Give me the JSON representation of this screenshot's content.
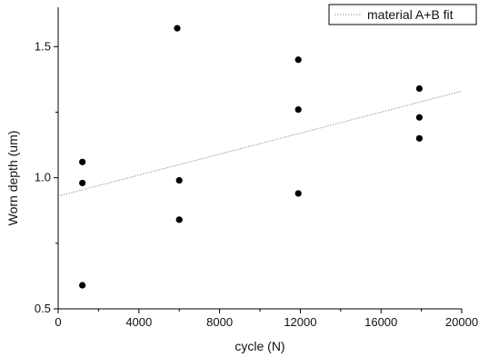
{
  "chart_data": {
    "type": "scatter",
    "xlabel": "cycle (N)",
    "ylabel": "Worn depth (um)",
    "xlim": [
      0,
      20000
    ],
    "ylim": [
      0.5,
      1.65
    ],
    "xticks": [
      0,
      4000,
      8000,
      12000,
      16000,
      20000
    ],
    "xtick_labels": [
      "0",
      "4000",
      "8000",
      "12000",
      "16000",
      "20000"
    ],
    "yticks": [
      0.5,
      1.0,
      1.5
    ],
    "ytick_labels": [
      "0.5",
      "1.0",
      "1.5"
    ],
    "grid": false,
    "legend_position": "top-right",
    "series": [
      {
        "values_x": [
          1200,
          1200,
          1200,
          5900,
          6000,
          6000,
          11900,
          11900,
          11900,
          17900,
          17900,
          17900
        ],
        "values_y": [
          1.06,
          0.98,
          0.59,
          1.57,
          0.99,
          0.84,
          1.45,
          1.26,
          0.94,
          1.34,
          1.23,
          1.15
        ],
        "marker": "circle",
        "color": "#000000"
      },
      {
        "name": "material A+B fit",
        "kind": "fit-line",
        "x": [
          0,
          20000
        ],
        "y": [
          0.93,
          1.33
        ],
        "color": "#9a9a9a",
        "dash": "dotted"
      }
    ]
  }
}
